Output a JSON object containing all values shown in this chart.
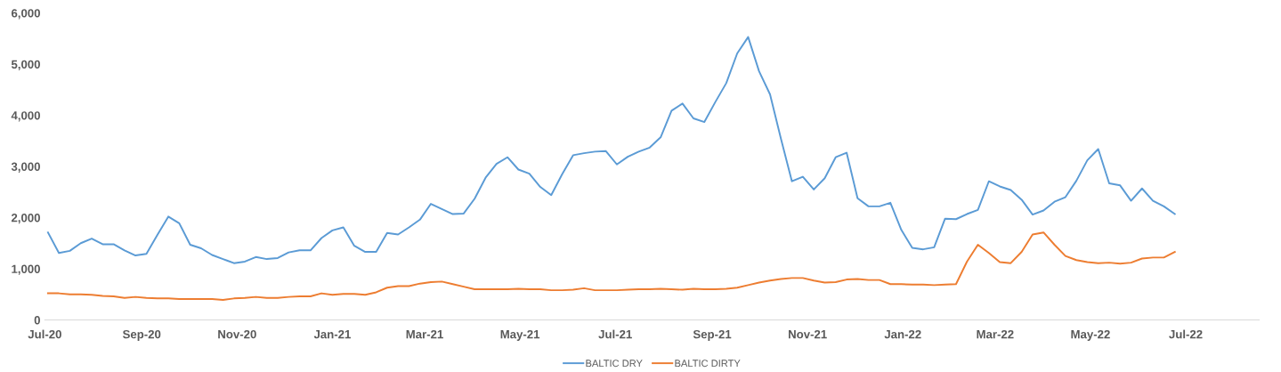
{
  "chart_data": {
    "type": "line",
    "x": [
      "2020-07-03",
      "2020-07-10",
      "2020-07-17",
      "2020-07-24",
      "2020-07-31",
      "2020-08-07",
      "2020-08-14",
      "2020-08-21",
      "2020-08-28",
      "2020-09-04",
      "2020-09-11",
      "2020-09-18",
      "2020-09-25",
      "2020-10-02",
      "2020-10-09",
      "2020-10-16",
      "2020-10-23",
      "2020-10-30",
      "2020-11-06",
      "2020-11-13",
      "2020-11-20",
      "2020-11-27",
      "2020-12-04",
      "2020-12-11",
      "2020-12-18",
      "2020-12-25",
      "2021-01-01",
      "2021-01-08",
      "2021-01-15",
      "2021-01-22",
      "2021-01-29",
      "2021-02-05",
      "2021-02-12",
      "2021-02-19",
      "2021-02-26",
      "2021-03-05",
      "2021-03-12",
      "2021-03-19",
      "2021-03-26",
      "2021-04-02",
      "2021-04-09",
      "2021-04-16",
      "2021-04-23",
      "2021-04-30",
      "2021-05-07",
      "2021-05-14",
      "2021-05-21",
      "2021-05-28",
      "2021-06-04",
      "2021-06-11",
      "2021-06-18",
      "2021-06-25",
      "2021-07-02",
      "2021-07-09",
      "2021-07-16",
      "2021-07-23",
      "2021-07-30",
      "2021-08-06",
      "2021-08-13",
      "2021-08-20",
      "2021-08-27",
      "2021-09-03",
      "2021-09-10",
      "2021-09-17",
      "2021-09-24",
      "2021-10-01",
      "2021-10-08",
      "2021-10-15",
      "2021-10-22",
      "2021-10-29",
      "2021-11-05",
      "2021-11-12",
      "2021-11-19",
      "2021-11-26",
      "2021-12-03",
      "2021-12-10",
      "2021-12-17",
      "2021-12-24",
      "2021-12-31",
      "2022-01-07",
      "2022-01-14",
      "2022-01-21",
      "2022-01-28",
      "2022-02-04",
      "2022-02-11",
      "2022-02-18",
      "2022-02-25",
      "2022-03-04",
      "2022-03-11",
      "2022-03-18",
      "2022-03-25",
      "2022-04-01",
      "2022-04-08",
      "2022-04-15",
      "2022-04-22",
      "2022-04-29",
      "2022-05-06",
      "2022-05-13",
      "2022-05-20",
      "2022-05-27",
      "2022-06-03",
      "2022-06-10",
      "2022-06-17",
      "2022-06-24"
    ],
    "series": [
      {
        "name": "BALTIC DRY",
        "color": "#5b9bd5",
        "values": [
          1710,
          1310,
          1350,
          1500,
          1590,
          1480,
          1480,
          1360,
          1260,
          1290,
          1660,
          2020,
          1890,
          1470,
          1400,
          1270,
          1190,
          1110,
          1140,
          1230,
          1190,
          1210,
          1320,
          1360,
          1360,
          1600,
          1750,
          1810,
          1450,
          1330,
          1330,
          1700,
          1670,
          1810,
          1960,
          2270,
          2170,
          2070,
          2080,
          2370,
          2780,
          3050,
          3180,
          2940,
          2860,
          2600,
          2440,
          2850,
          3220,
          3260,
          3290,
          3300,
          3040,
          3190,
          3290,
          3370,
          3570,
          4090,
          4230,
          3940,
          3870,
          4260,
          4630,
          5210,
          5530,
          4860,
          4410,
          3540,
          2710,
          2800,
          2550,
          2770,
          3180,
          3270,
          2380,
          2220,
          2220,
          2290,
          1760,
          1410,
          1380,
          1420,
          1980,
          1970,
          2070,
          2150,
          2710,
          2610,
          2540,
          2350,
          2060,
          2140,
          2310,
          2400,
          2720,
          3120,
          3340,
          2670,
          2630,
          2330,
          2570,
          2330,
          2220,
          2070
        ]
      },
      {
        "name": "BALTIC DIRTY",
        "color": "#ed7d31",
        "values": [
          520,
          520,
          500,
          500,
          490,
          470,
          460,
          430,
          450,
          430,
          420,
          420,
          410,
          410,
          410,
          410,
          390,
          420,
          430,
          450,
          430,
          430,
          450,
          460,
          460,
          520,
          490,
          510,
          510,
          490,
          540,
          630,
          660,
          660,
          710,
          740,
          750,
          700,
          650,
          600,
          600,
          600,
          600,
          610,
          600,
          600,
          580,
          580,
          590,
          620,
          580,
          580,
          580,
          590,
          600,
          600,
          610,
          600,
          590,
          610,
          600,
          600,
          610,
          630,
          680,
          730,
          770,
          800,
          820,
          820,
          770,
          730,
          740,
          790,
          800,
          780,
          780,
          700,
          700,
          690,
          690,
          680,
          690,
          700,
          1140,
          1470,
          1310,
          1130,
          1110,
          1330,
          1670,
          1710,
          1470,
          1250,
          1170,
          1130,
          1110,
          1120,
          1100,
          1120,
          1200,
          1220,
          1220,
          1330
        ]
      }
    ],
    "xlim": [
      "2020-07-01",
      "2022-08-17"
    ],
    "xticks": [
      {
        "value": "2020-07-01",
        "label": "Jul-20"
      },
      {
        "value": "2020-09-01",
        "label": "Sep-20"
      },
      {
        "value": "2020-11-01",
        "label": "Nov-20"
      },
      {
        "value": "2021-01-01",
        "label": "Jan-21"
      },
      {
        "value": "2021-03-01",
        "label": "Mar-21"
      },
      {
        "value": "2021-05-01",
        "label": "May-21"
      },
      {
        "value": "2021-07-01",
        "label": "Jul-21"
      },
      {
        "value": "2021-09-01",
        "label": "Sep-21"
      },
      {
        "value": "2021-11-01",
        "label": "Nov-21"
      },
      {
        "value": "2022-01-01",
        "label": "Jan-22"
      },
      {
        "value": "2022-03-01",
        "label": "Mar-22"
      },
      {
        "value": "2022-05-01",
        "label": "May-22"
      },
      {
        "value": "2022-07-01",
        "label": "Jul-22"
      }
    ],
    "ylim": [
      0,
      6000
    ],
    "yticks": [
      0,
      {
        "value": 1000,
        "label": "1,000"
      },
      {
        "value": 2000,
        "label": "2,000"
      },
      {
        "value": 3000,
        "label": "3,000"
      },
      {
        "value": 4000,
        "label": "4,000"
      },
      {
        "value": 5000,
        "label": "5,000"
      },
      {
        "value": 6000,
        "label": "6,000"
      }
    ],
    "grid": false,
    "legend": "bottom",
    "marker": "none",
    "line_style": "solid"
  }
}
